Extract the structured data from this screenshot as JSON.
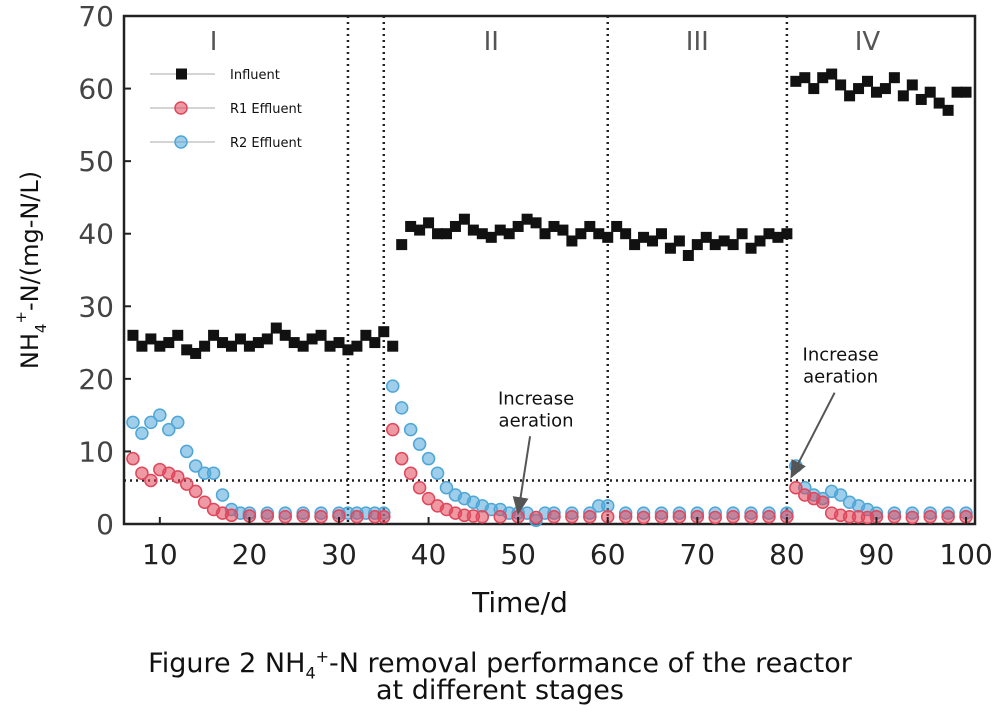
{
  "chart_data": {
    "type": "scatter",
    "title": "",
    "xlabel": "Time/d",
    "ylabel": "NH4+-N/(mg-N/L)",
    "ylabel_parts": {
      "base": "NH",
      "sub": "4",
      "sup": "+",
      "rest": "-N/(mg-N/L)"
    },
    "xlim": [
      6,
      101
    ],
    "ylim": [
      0,
      70
    ],
    "xticks": [
      10,
      20,
      30,
      40,
      50,
      60,
      70,
      80,
      90,
      100
    ],
    "yticks": [
      0,
      10,
      20,
      30,
      40,
      50,
      60,
      70
    ],
    "grid": false,
    "legend_position": "top-left",
    "stage_boundaries": [
      31,
      35,
      60,
      80
    ],
    "stage_labels": [
      {
        "label": "I",
        "x": 16
      },
      {
        "label": "II",
        "x": 47
      },
      {
        "label": "III",
        "x": 70
      },
      {
        "label": "IV",
        "x": 89
      }
    ],
    "reference_line_y": 6,
    "annotations": [
      {
        "line1": "Increase",
        "line2": "aeration",
        "text_x": 52,
        "text_y": 16.5,
        "arrow_to": [
          50,
          1.5
        ]
      },
      {
        "line1": "Increase",
        "line2": "aeration",
        "text_x": 86,
        "text_y": 22.5,
        "arrow_to": [
          80.5,
          6.5
        ]
      }
    ],
    "series": [
      {
        "name": "Influent",
        "color": "#111111",
        "marker": "square",
        "x": [
          7,
          8,
          9,
          10,
          11,
          12,
          13,
          14,
          15,
          16,
          17,
          18,
          19,
          20,
          21,
          22,
          23,
          24,
          25,
          26,
          27,
          28,
          29,
          30,
          31,
          32,
          33,
          34,
          35,
          36,
          37,
          38,
          39,
          40,
          41,
          42,
          43,
          44,
          45,
          46,
          47,
          48,
          49,
          50,
          51,
          52,
          53,
          54,
          55,
          56,
          57,
          58,
          59,
          60,
          61,
          62,
          63,
          64,
          65,
          66,
          67,
          68,
          69,
          70,
          71,
          72,
          73,
          74,
          75,
          76,
          77,
          78,
          79,
          80,
          81,
          82,
          83,
          84,
          85,
          86,
          87,
          88,
          89,
          90,
          91,
          92,
          93,
          94,
          95,
          96,
          97,
          98,
          99,
          100
        ],
        "y": [
          26,
          24.5,
          25.5,
          24.5,
          25,
          26,
          24,
          23.5,
          24.5,
          26,
          25,
          24.5,
          25.5,
          24.5,
          25,
          25.5,
          27,
          26,
          25,
          24.5,
          25.5,
          26,
          24.5,
          25,
          24,
          24.5,
          26,
          25,
          26.5,
          24.5,
          38.5,
          41,
          40.5,
          41.5,
          40,
          40,
          41,
          42,
          40.5,
          40,
          39.5,
          40.5,
          40,
          41,
          42,
          41.5,
          40,
          41,
          40.5,
          39,
          40,
          41,
          40,
          39.5,
          41,
          40,
          38.5,
          39.5,
          39,
          40,
          38,
          39,
          37,
          38.5,
          39.5,
          38.5,
          39,
          38.5,
          40,
          38,
          39,
          40,
          39.5,
          40,
          61,
          61.5,
          60,
          61.5,
          62,
          60.5,
          59,
          60,
          61,
          59.5,
          60,
          61.5,
          59,
          60.5,
          58.5,
          59.5,
          58,
          57,
          59.5,
          59.5
        ]
      },
      {
        "name": "R1 Effluent",
        "color": "#e0475b",
        "marker": "circle",
        "x": [
          7,
          8,
          9,
          10,
          11,
          12,
          13,
          14,
          15,
          16,
          17,
          18,
          20,
          22,
          24,
          26,
          28,
          30,
          32,
          34,
          35,
          36,
          37,
          38,
          39,
          40,
          41,
          42,
          43,
          44,
          45,
          46,
          48,
          50,
          52,
          54,
          56,
          58,
          60,
          62,
          64,
          66,
          68,
          70,
          72,
          74,
          76,
          78,
          80,
          81,
          82,
          83,
          84,
          85,
          86,
          87,
          88,
          89,
          90,
          92,
          94,
          96,
          98,
          100
        ],
        "y": [
          9,
          7,
          6,
          7.5,
          7,
          6.5,
          5.5,
          4.5,
          3,
          2,
          1.5,
          1.2,
          1.1,
          1.1,
          1.0,
          1.1,
          1.0,
          1.1,
          1.0,
          1.0,
          1.0,
          13,
          9,
          7,
          5,
          3.5,
          2.5,
          2,
          1.5,
          1.2,
          1.1,
          1.0,
          1.0,
          1.0,
          0.9,
          1.0,
          1.0,
          1.0,
          1.0,
          1.0,
          0.9,
          1.0,
          1.0,
          1.0,
          0.9,
          1.0,
          1.0,
          1.0,
          1.0,
          5,
          4,
          3.5,
          3,
          1.5,
          1.2,
          1.0,
          1.0,
          0.9,
          1.0,
          1.0,
          0.9,
          1.0,
          1.0,
          1.0
        ]
      },
      {
        "name": "R2 Effluent",
        "color": "#4ea6d8",
        "marker": "circle",
        "x": [
          7,
          8,
          9,
          10,
          11,
          12,
          13,
          14,
          15,
          16,
          17,
          18,
          19,
          20,
          22,
          24,
          26,
          28,
          30,
          31,
          32,
          33,
          34,
          35,
          36,
          37,
          38,
          39,
          40,
          41,
          42,
          43,
          44,
          45,
          46,
          47,
          48,
          49,
          50,
          51,
          52,
          53,
          54,
          56,
          58,
          59,
          60,
          62,
          64,
          66,
          68,
          70,
          72,
          74,
          76,
          78,
          80,
          81,
          82,
          83,
          84,
          85,
          86,
          87,
          88,
          89,
          90,
          92,
          94,
          96,
          98,
          100
        ],
        "y": [
          14,
          12.5,
          14,
          15,
          13,
          14,
          10,
          8,
          7,
          7,
          4,
          2,
          1.5,
          1.5,
          1.5,
          1.5,
          1.5,
          1.5,
          1.5,
          1.5,
          1.5,
          1.5,
          1.5,
          1.5,
          19,
          16,
          13,
          11,
          9,
          7,
          5,
          4,
          3.5,
          3,
          2.5,
          2,
          2,
          1.5,
          1.5,
          1.5,
          0.5,
          1.5,
          1.5,
          1.5,
          1.5,
          2.5,
          2.5,
          1.5,
          1.5,
          1.5,
          1.5,
          1.5,
          1.5,
          1.5,
          1.5,
          1.5,
          1.5,
          8,
          5,
          4,
          3.5,
          4.5,
          4,
          3,
          2.5,
          2,
          1.5,
          1.5,
          1.5,
          1.5,
          1.5,
          1.5
        ]
      }
    ]
  },
  "caption": {
    "line1_prefix": "Figure 2 NH",
    "sub": "4",
    "sup": "+",
    "line1_suffix": "-N removal performance of the reactor",
    "line2": "at different stages"
  }
}
